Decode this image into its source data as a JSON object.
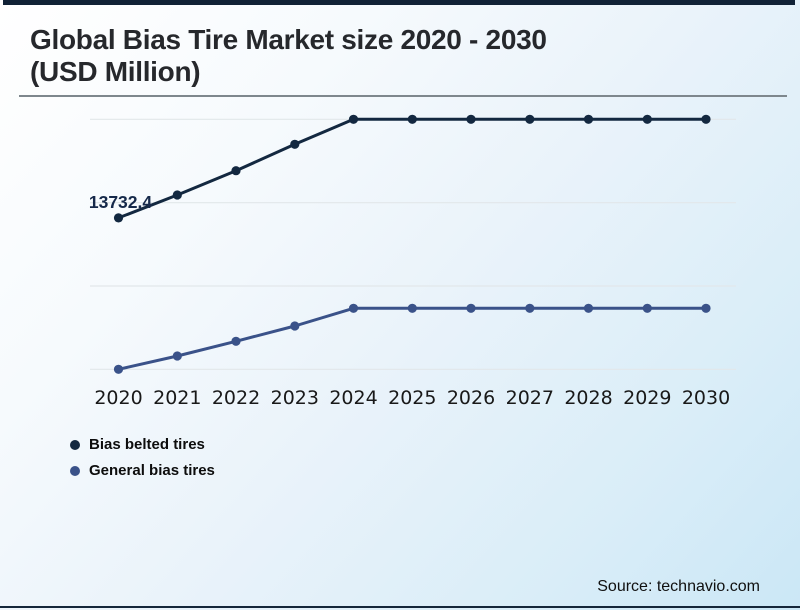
{
  "header": {
    "title_line1": "Global Bias Tire Market size 2020 - 2030",
    "title_line2": "(USD Million)"
  },
  "chart_data": {
    "type": "line",
    "title": "Global Bias Tire Market size 2020 - 2030 (USD Million)",
    "ylabel": "",
    "xlabel": "",
    "categories": [
      "2020",
      "2021",
      "2022",
      "2023",
      "2024",
      "2025",
      "2026",
      "2027",
      "2028",
      "2029",
      "2030"
    ],
    "series": [
      {
        "name": "Bias belted tires",
        "color": "#132840",
        "values": [
          13732.4,
          14420,
          15150,
          15940,
          16690,
          16690,
          16690,
          16690,
          16690,
          16690,
          16690
        ],
        "data_label": {
          "index": 0,
          "text": "13732.4"
        }
      },
      {
        "name": "General bias tires",
        "color": "#3a5289",
        "values": [
          9190,
          9590,
          10030,
          10490,
          11020,
          11020,
          11020,
          11020,
          11020,
          11020,
          11020
        ]
      }
    ],
    "ylim": [
      8870,
      17120
    ],
    "gridlines": [
      16690,
      14190,
      11690,
      9190
    ],
    "grid": "horizontal-only",
    "legend_position": "bottom-left",
    "gridline_color": "#e2e7ea"
  },
  "legend": {
    "items": [
      {
        "label": "Bias belted tires",
        "color": "#132840"
      },
      {
        "label": "General bias tires",
        "color": "#3a5289"
      }
    ]
  },
  "footer": {
    "source": "Source: technavio.com"
  },
  "colors": {
    "top_border": "#112236",
    "bottom_border": "#15273a",
    "title_rule": "#7e878d",
    "background_tint": "#cbe7f6"
  }
}
